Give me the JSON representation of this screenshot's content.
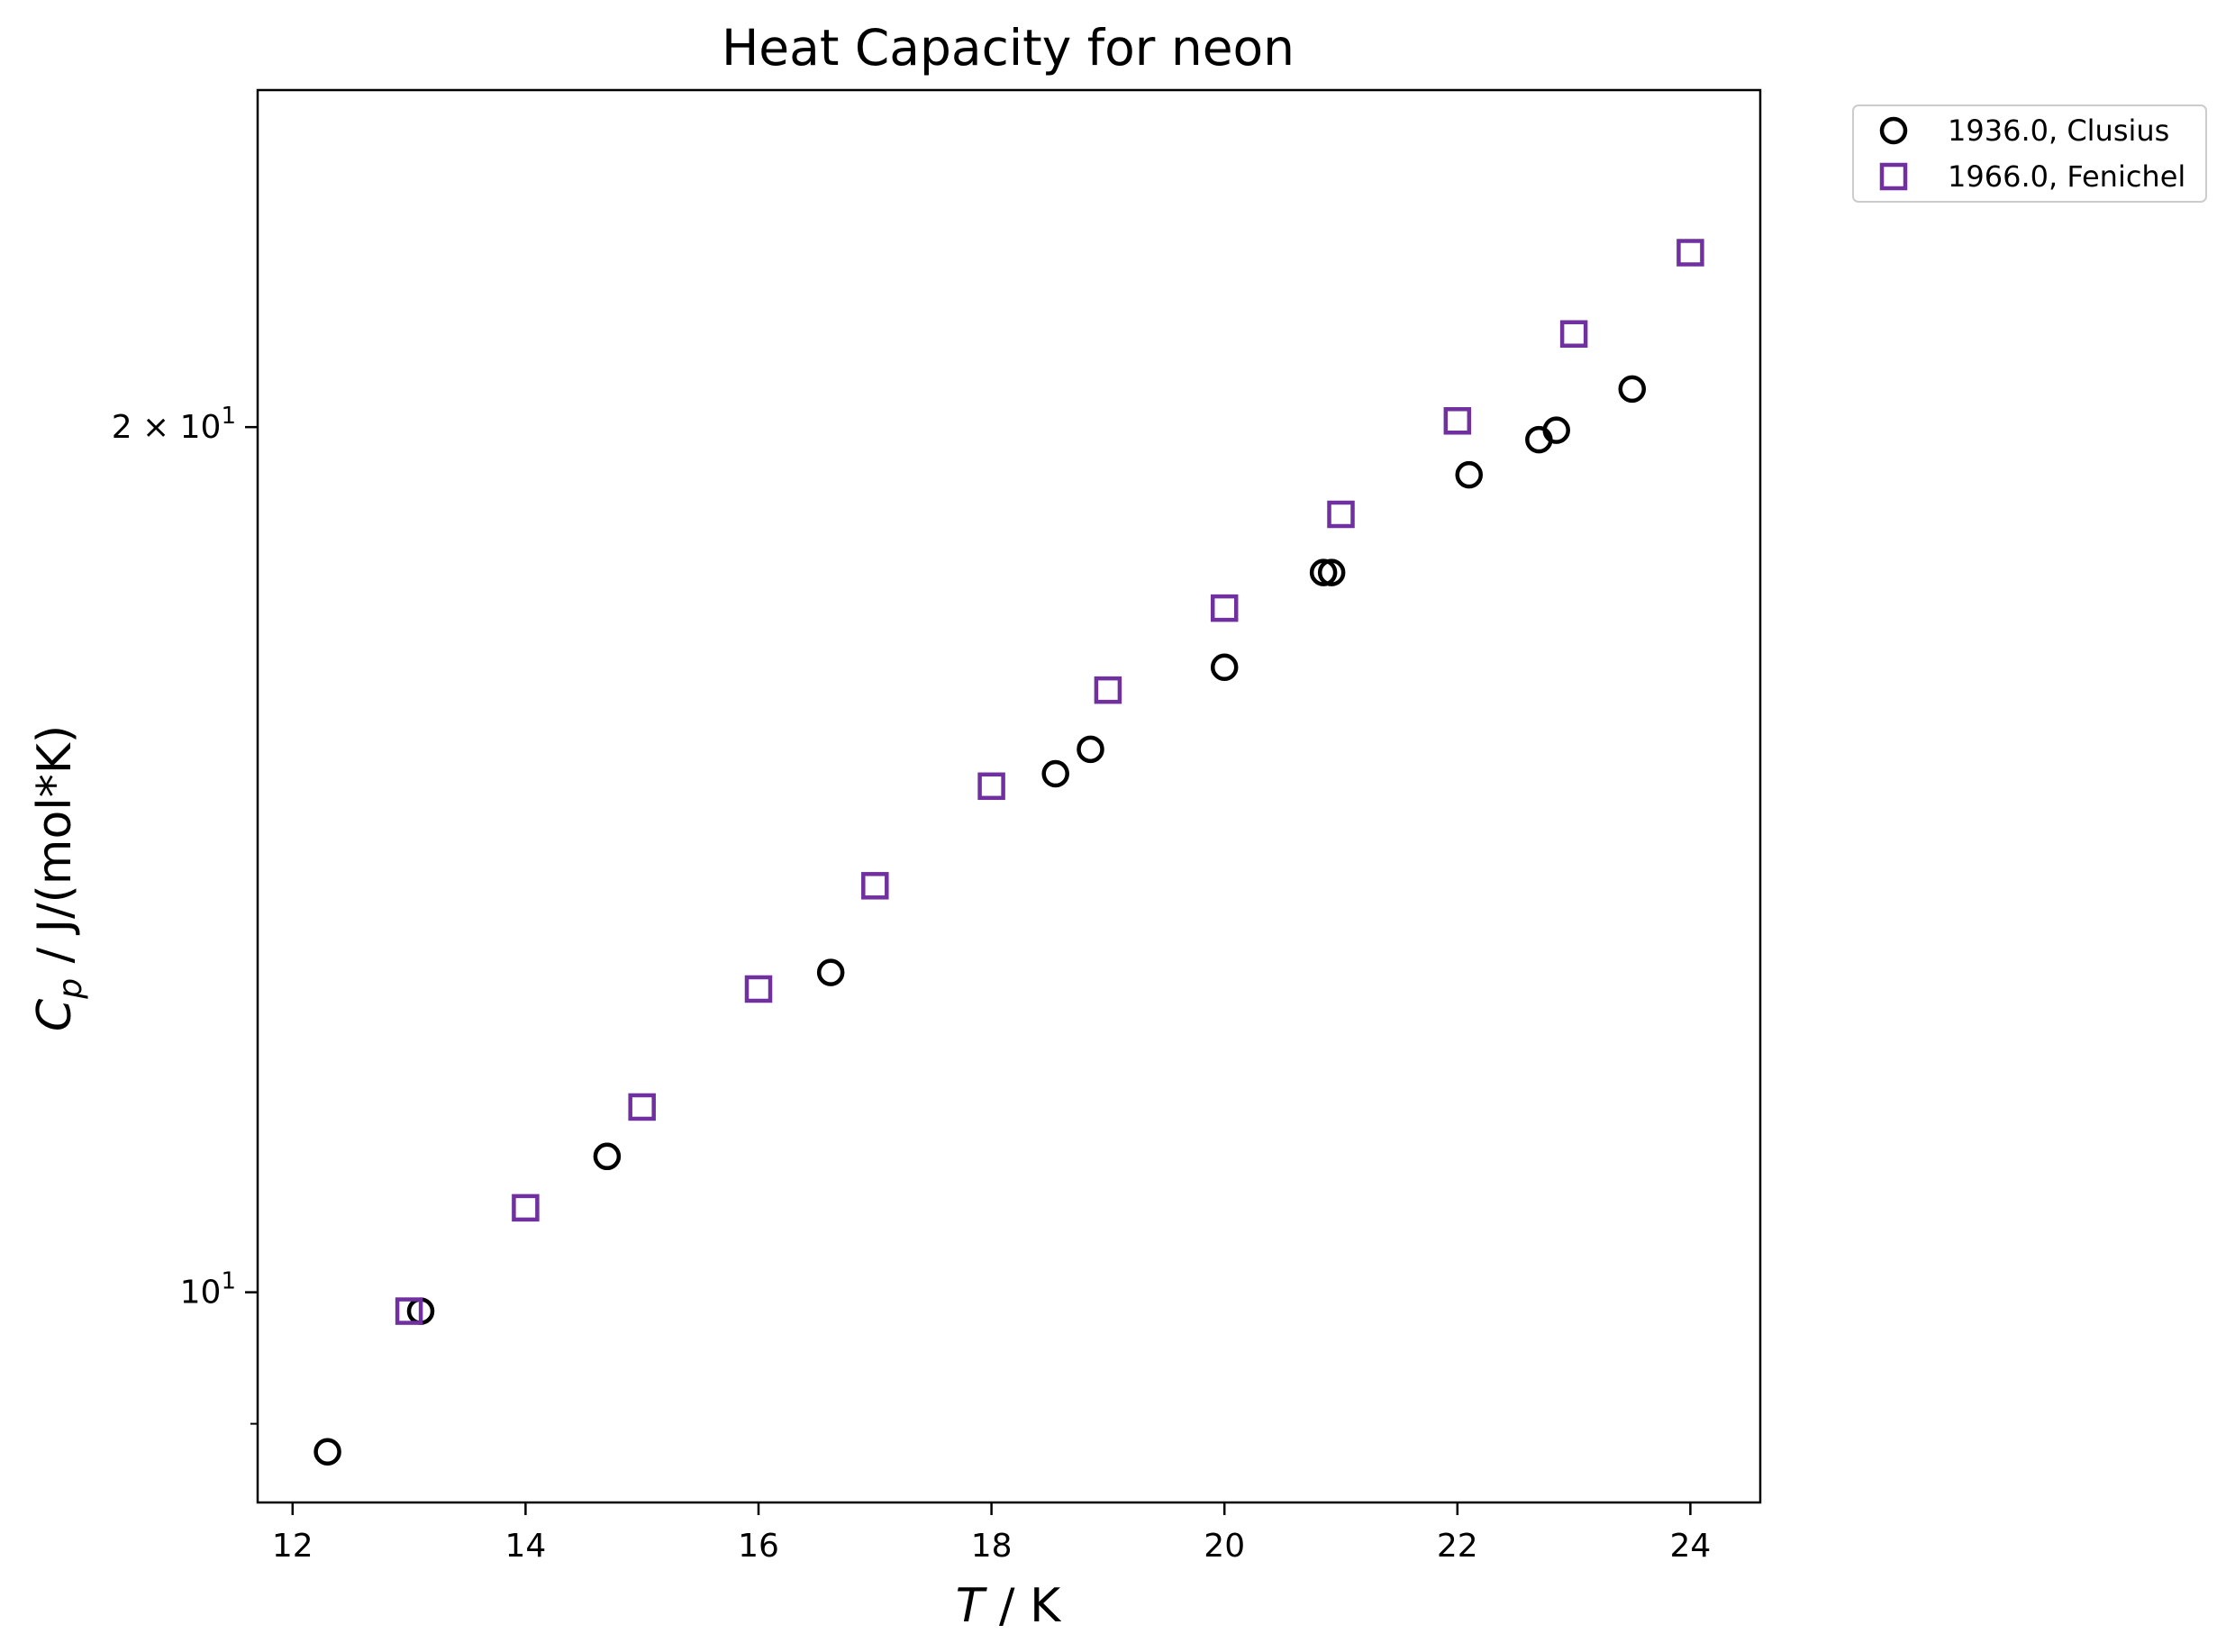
{
  "chart_data": {
    "type": "scatter",
    "title": "Heat Capacity for neon",
    "xlabel_italic": "T",
    "xlabel_rest": " / K",
    "ylabel_symbol": "C",
    "ylabel_subscript": "p",
    "ylabel_rest": " / J/(mol*K)",
    "xlim": [
      11.7,
      24.6
    ],
    "ylim": [
      8.45,
      26.2
    ],
    "yscale": "log",
    "x_ticks": [
      12,
      14,
      16,
      18,
      20,
      22,
      24
    ],
    "y_ticks": [
      {
        "value": 10,
        "base": "10",
        "exp": "1",
        "prefix": ""
      },
      {
        "value": 20,
        "base": "10",
        "exp": "1",
        "prefix": "2 × "
      }
    ],
    "y_minor_ticks": [
      9
    ],
    "grid": false,
    "legend_position": "outside-top-right",
    "series": [
      {
        "name": "1936.0, Clusius",
        "marker": "circle",
        "color": "#000000",
        "points": [
          [
            12.3,
            8.8
          ],
          [
            13.1,
            9.85
          ],
          [
            14.7,
            11.15
          ],
          [
            16.62,
            12.92
          ],
          [
            18.55,
            15.15
          ],
          [
            18.85,
            15.45
          ],
          [
            20.0,
            16.5
          ],
          [
            20.85,
            17.8
          ],
          [
            20.92,
            17.8
          ],
          [
            22.1,
            19.25
          ],
          [
            22.7,
            19.8
          ],
          [
            22.85,
            19.95
          ],
          [
            23.5,
            20.62
          ]
        ]
      },
      {
        "name": "1966.0, Fenichel",
        "marker": "square",
        "color": "#7030a0",
        "points": [
          [
            13.0,
            9.85
          ],
          [
            14.0,
            10.7
          ],
          [
            15.0,
            11.6
          ],
          [
            16.0,
            12.75
          ],
          [
            17.0,
            13.85
          ],
          [
            18.0,
            15.0
          ],
          [
            19.0,
            16.2
          ],
          [
            20.0,
            17.3
          ],
          [
            21.0,
            18.65
          ],
          [
            22.0,
            20.1
          ],
          [
            23.0,
            21.55
          ],
          [
            24.0,
            23.0
          ]
        ]
      }
    ]
  }
}
